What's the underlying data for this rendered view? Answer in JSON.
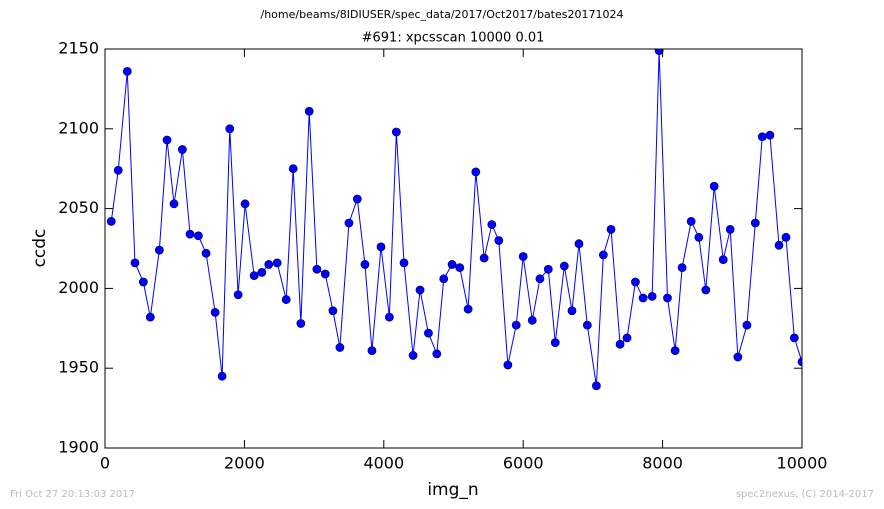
{
  "chart_data": {
    "type": "line",
    "suptitle": "/home/beams/8IDIUSER/spec_data/2017/Oct2017/bates20171024",
    "title": "#691: xpcsscan 10000 0.01",
    "xlabel": "img_n",
    "ylabel": "ccdc",
    "footer_left": "Fri Oct 27 20:13:03 2017",
    "footer_right": "spec2nexus, (C) 2014-2017",
    "x": [
      90,
      190,
      320,
      430,
      550,
      650,
      780,
      890,
      990,
      1110,
      1220,
      1340,
      1450,
      1580,
      1680,
      1790,
      1910,
      2010,
      2140,
      2250,
      2350,
      2470,
      2600,
      2700,
      2810,
      2930,
      3040,
      3160,
      3270,
      3370,
      3500,
      3620,
      3730,
      3830,
      3960,
      4080,
      4180,
      4290,
      4420,
      4520,
      4640,
      4760,
      4860,
      4980,
      5090,
      5210,
      5320,
      5440,
      5550,
      5650,
      5780,
      5900,
      6000,
      6130,
      6240,
      6360,
      6460,
      6590,
      6700,
      6800,
      6920,
      7050,
      7150,
      7260,
      7390,
      7490,
      7610,
      7720,
      7850,
      7950,
      8070,
      8180,
      8280,
      8410,
      8520,
      8620,
      8740,
      8870,
      8970,
      9080,
      9210,
      9330,
      9430,
      9540,
      9670,
      9770,
      9890,
      10000
    ],
    "series": [
      {
        "name": "ccdc",
        "color": "#0000ff",
        "values": [
          2042,
          2074,
          2136,
          2016,
          2004,
          1982,
          2024,
          2093,
          2053,
          2087,
          2034,
          2033,
          2022,
          1985,
          1945,
          2100,
          1996,
          2053,
          2008,
          2010,
          2015,
          2016,
          1993,
          2075,
          1978,
          2111,
          2012,
          2009,
          1986,
          1963,
          2041,
          2056,
          2015,
          1961,
          2026,
          1982,
          2098,
          2016,
          1958,
          1999,
          1972,
          1959,
          2006,
          2015,
          2013,
          1987,
          2073,
          2019,
          2040,
          2030,
          1952,
          1977,
          2020,
          1980,
          2006,
          2012,
          1966,
          2014,
          1986,
          2028,
          1977,
          1939,
          2021,
          2037,
          1965,
          1969,
          2004,
          1994,
          1995,
          2149,
          1994,
          1961,
          2013,
          2042,
          2032,
          1999,
          2064,
          2018,
          2037,
          1957,
          1977,
          2041,
          2095,
          2096,
          2027,
          2032,
          1969,
          1954
        ]
      }
    ],
    "xlim": [
      0,
      10000
    ],
    "xticks": [
      0,
      2000,
      4000,
      6000,
      8000,
      10000
    ],
    "ylim": [
      1900,
      2150
    ],
    "yticks": [
      1900,
      1950,
      2000,
      2050,
      2100,
      2150
    ],
    "grid": false
  }
}
